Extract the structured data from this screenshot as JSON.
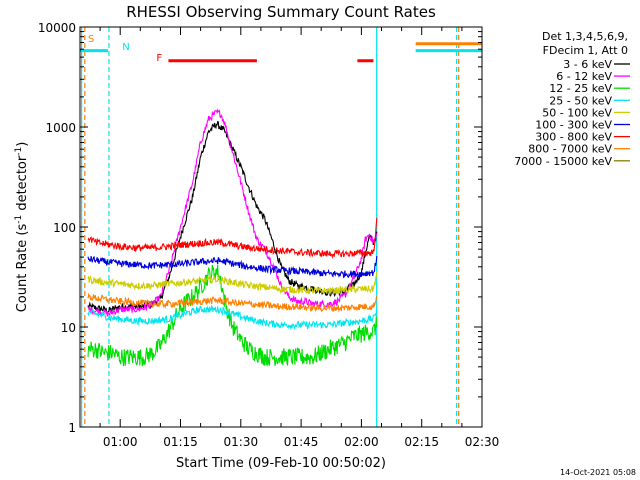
{
  "chart_data": {
    "type": "line",
    "title": "RHESSI Observing Summary Count Rates",
    "xlabel": "Start Time (09-Feb-10 00:50:02)",
    "ylabel": "Count Rate (s",
    "ylabel_sup": "-1",
    "ylabel_tail": " detector",
    "ylabel_sup2": "-1",
    "ylabel_close": ")",
    "yscale": "log",
    "ylim": [
      1,
      10000
    ],
    "xlim_minutes": [
      50,
      150
    ],
    "x_tick_labels": [
      "01:00",
      "01:15",
      "01:30",
      "01:45",
      "02:00",
      "02:15",
      "02:30"
    ],
    "x_tick_minutes": [
      60,
      75,
      90,
      105,
      120,
      135,
      150
    ],
    "y_tick_labels": [
      "1",
      "10",
      "100",
      "1000",
      "10000"
    ],
    "y_tick_values": [
      1,
      10,
      100,
      1000,
      10000
    ],
    "legend_header": [
      "Det 1,3,4,5,6,9,",
      "FDecim 1, Att 0"
    ],
    "legend_position": "top-right",
    "footer_date": "14-Oct-2021 05:08",
    "flags": [
      {
        "label": "S",
        "color": "#ff8000"
      },
      {
        "label": "N",
        "color": "#00e5ee"
      },
      {
        "label": "F",
        "color": "#ff0000"
      }
    ],
    "flag_bars": [
      {
        "flag": "S",
        "color": "#ff8000",
        "level": 6800,
        "spans": [
          [
            133.5,
            150
          ]
        ]
      },
      {
        "flag": "N",
        "color": "#00e5ee",
        "level": 5800,
        "spans": [
          [
            50,
            57
          ],
          [
            133.5,
            150
          ]
        ]
      },
      {
        "flag": "F",
        "color": "#ff0000",
        "level": 4600,
        "spans": [
          [
            72,
            94
          ],
          [
            119,
            123
          ]
        ]
      }
    ],
    "vertical_lines": [
      {
        "minute": 50.4,
        "color": "#00e5ee",
        "style": "solid"
      },
      {
        "minute": 51.2,
        "color": "#ff8000",
        "style": "dashed"
      },
      {
        "minute": 57.2,
        "color": "#00e5ee",
        "style": "dashed"
      },
      {
        "minute": 123.8,
        "color": "#00e5ee",
        "style": "solid"
      },
      {
        "minute": 143.7,
        "color": "#00e5ee",
        "style": "dashed"
      },
      {
        "minute": 144.2,
        "color": "#ff8000",
        "style": "dashed"
      }
    ],
    "series": [
      {
        "name": "3 - 6 keV",
        "color": "#000000",
        "x": [
          52,
          56,
          57,
          60,
          64,
          66,
          68,
          70,
          72,
          75,
          78,
          80,
          82,
          84,
          86,
          88,
          90,
          92,
          94,
          96,
          98,
          100,
          102,
          104,
          106,
          108,
          110,
          112,
          114,
          116,
          118,
          120,
          121,
          122,
          123,
          124
        ],
        "y": [
          16,
          15,
          14.5,
          16,
          16,
          16,
          17,
          19,
          30,
          80,
          200,
          500,
          900,
          1080,
          900,
          600,
          400,
          250,
          160,
          120,
          70,
          40,
          29,
          26,
          25,
          24,
          23,
          22,
          22,
          23,
          26,
          35,
          55,
          80,
          70,
          90
        ]
      },
      {
        "name": "6 - 12 keV",
        "color": "#ff00ff",
        "x": [
          52,
          56,
          57,
          60,
          64,
          66,
          68,
          70,
          72,
          75,
          78,
          80,
          82,
          84,
          85,
          86,
          88,
          90,
          92,
          94,
          96,
          98,
          100,
          102,
          104,
          106,
          108,
          110,
          112,
          114,
          116,
          118,
          120,
          121,
          122,
          123,
          124
        ],
        "y": [
          15,
          14,
          13.5,
          15,
          15,
          15.5,
          17,
          20,
          35,
          100,
          280,
          700,
          1200,
          1400,
          1350,
          1100,
          550,
          280,
          140,
          75,
          60,
          42,
          26,
          20,
          18,
          18,
          17,
          17,
          17,
          18,
          21,
          30,
          48,
          75,
          85,
          70,
          85
        ]
      },
      {
        "name": "12 - 25 keV",
        "color": "#00dd00",
        "x": [
          52,
          54,
          56,
          58,
          60,
          62,
          64,
          66,
          68,
          70,
          72,
          74,
          76,
          78,
          80,
          82,
          84,
          85,
          86,
          88,
          90,
          92,
          94,
          96,
          98,
          100,
          102,
          104,
          106,
          108,
          110,
          112,
          114,
          116,
          118,
          120,
          122,
          123,
          124
        ],
        "y": [
          6,
          6,
          5.5,
          5.5,
          5,
          5,
          5,
          5,
          5.5,
          6.5,
          9,
          13,
          17,
          20,
          25,
          33,
          37,
          30,
          18,
          10,
          7.5,
          6,
          5.5,
          5,
          5,
          5,
          5,
          5,
          5,
          5,
          5.5,
          6,
          6.5,
          7,
          8,
          8.5,
          9,
          9,
          11
        ]
      },
      {
        "name": "25 - 50 keV",
        "color": "#00e5ee",
        "x": [
          52,
          56,
          57,
          60,
          64,
          68,
          72,
          76,
          80,
          84,
          86,
          88,
          92,
          96,
          100,
          104,
          108,
          112,
          116,
          120,
          122,
          123,
          124
        ],
        "y": [
          14,
          13,
          12.5,
          12,
          11.5,
          11.5,
          12,
          13.5,
          15,
          15,
          14.5,
          13.5,
          12,
          11,
          10.5,
          10.5,
          10.5,
          10.5,
          11,
          11.5,
          12,
          12,
          16
        ]
      },
      {
        "name": "50 - 100 keV",
        "color": "#cccc00",
        "x": [
          52,
          56,
          60,
          64,
          68,
          72,
          76,
          80,
          84,
          86,
          88,
          92,
          96,
          100,
          104,
          108,
          112,
          116,
          120,
          122,
          123,
          124
        ],
        "y": [
          30,
          28,
          27,
          26,
          26,
          27,
          28,
          29,
          30,
          29,
          28,
          26,
          25,
          24,
          23.5,
          23,
          23,
          23.5,
          24,
          24,
          24,
          36
        ]
      },
      {
        "name": "100 - 300 keV",
        "color": "#0000dd",
        "x": [
          52,
          56,
          60,
          64,
          68,
          72,
          76,
          80,
          84,
          86,
          88,
          92,
          96,
          100,
          104,
          108,
          112,
          116,
          120,
          122,
          123,
          124
        ],
        "y": [
          48,
          45,
          43,
          42,
          41,
          42,
          43,
          45,
          46,
          45,
          43,
          40,
          38,
          37,
          36,
          35,
          34,
          34,
          34,
          35,
          35,
          50
        ]
      },
      {
        "name": "300 - 800 keV",
        "color": "#ff0000",
        "x": [
          52,
          54,
          56,
          60,
          64,
          68,
          72,
          76,
          80,
          84,
          86,
          88,
          92,
          96,
          100,
          104,
          108,
          112,
          116,
          120,
          122,
          123,
          124
        ],
        "y": [
          78,
          70,
          68,
          64,
          62,
          62,
          64,
          67,
          69,
          70,
          69,
          66,
          62,
          60,
          58,
          56,
          55,
          54,
          54,
          55,
          55,
          56,
          130
        ]
      },
      {
        "name": "800 - 7000 keV",
        "color": "#ff8000",
        "x": [
          52,
          56,
          60,
          64,
          68,
          72,
          76,
          80,
          84,
          86,
          88,
          92,
          96,
          100,
          104,
          108,
          112,
          116,
          120,
          122,
          123,
          124
        ],
        "y": [
          20,
          19,
          18,
          17.5,
          17,
          17,
          17.5,
          18,
          18.5,
          18,
          17.5,
          17,
          16.5,
          16,
          16,
          15.5,
          15.5,
          15.5,
          16,
          16,
          16,
          21
        ]
      },
      {
        "name": "7000 - 15000 keV",
        "color": "#808000",
        "x": [],
        "y": []
      }
    ]
  }
}
